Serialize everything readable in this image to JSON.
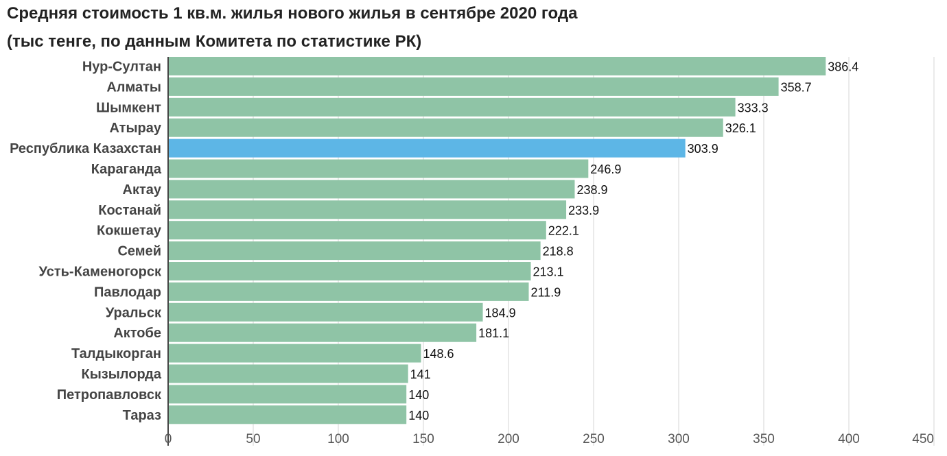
{
  "chart_data": {
    "type": "bar",
    "orientation": "horizontal",
    "title": "Средняя стоимость 1 кв.м. жилья нового жилья в сентябре 2020 года",
    "subtitle": "(тыс тенге, по данным Комитета по статистике РК)",
    "xlabel": "",
    "ylabel": "",
    "xlim": [
      0,
      450
    ],
    "x_ticks": [
      0,
      50,
      100,
      150,
      200,
      250,
      300,
      350,
      400,
      450
    ],
    "grid": true,
    "legend": "none",
    "categories": [
      "Нур-Султан",
      "Алматы",
      "Шымкент",
      "Атырау",
      "Республика Казахстан",
      "Караганда",
      "Актау",
      "Костанай",
      "Кокшетау",
      "Семей",
      "Усть-Каменогорск",
      "Павлодар",
      "Уральск",
      "Актобе",
      "Талдыкорган",
      "Кызылорда",
      "Петропавловск",
      "Тараз"
    ],
    "values": [
      386.4,
      358.7,
      333.3,
      326.1,
      303.9,
      246.9,
      238.9,
      233.9,
      222.1,
      218.8,
      213.1,
      211.9,
      184.9,
      181.1,
      148.6,
      141,
      140,
      140
    ],
    "value_labels": [
      "386.4",
      "358.7",
      "333.3",
      "326.1",
      "303.9",
      "246.9",
      "238.9",
      "233.9",
      "222.1",
      "218.8",
      "213.1",
      "211.9",
      "184.9",
      "181.1",
      "148.6",
      "141",
      "140",
      "140"
    ],
    "highlight_category": "Республика Казахстан",
    "colors": {
      "bar": "#8fc4a6",
      "highlight": "#5db6e6",
      "grid": "#e3e3e3",
      "axis": "#444444",
      "category_text": "#444444",
      "tick_text": "#555555",
      "value_text": "#111111"
    }
  }
}
